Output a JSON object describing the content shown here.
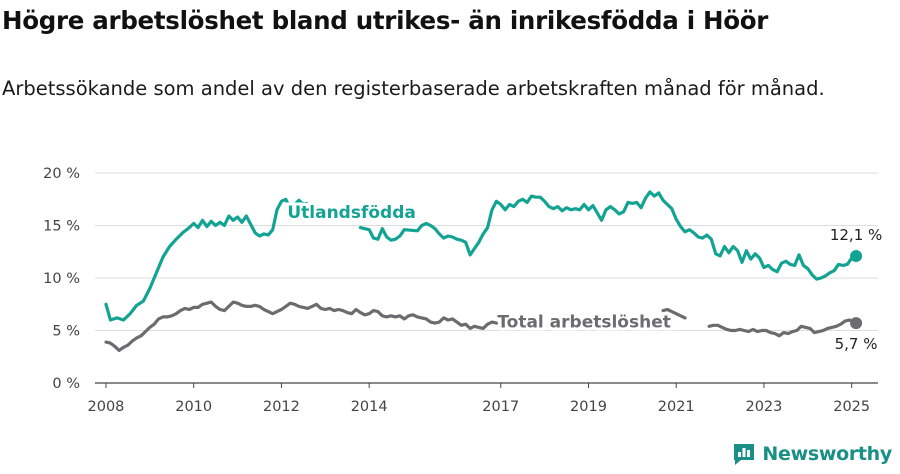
{
  "title": "Högre arbetslöshet bland utrikes- än inrikesfödda i Höör",
  "subtitle": "Arbetssökande som andel av den registerbaserade arbetskraften månad för månad.",
  "brand": {
    "name": "Newsworthy",
    "icon": "newsworthy-logo-icon",
    "color": "#1a8f86"
  },
  "chart_data": {
    "type": "line",
    "xlim": [
      2007.75,
      2025.6
    ],
    "ylim": [
      0,
      20
    ],
    "yticks": [
      0,
      5,
      10,
      15,
      20
    ],
    "ytick_labels": [
      "0 %",
      "5 %",
      "10 %",
      "15 %",
      "20 %"
    ],
    "xticks": [
      2008,
      2010,
      2012,
      2014,
      2017,
      2019,
      2021,
      2023,
      2025
    ],
    "xtick_labels": [
      "2008",
      "2010",
      "2012",
      "2014",
      "2017",
      "2019",
      "2021",
      "2023",
      "2025"
    ],
    "grid": true,
    "series": [
      {
        "name": "Utlandsfödda",
        "color": "#13a393",
        "end_label": "12,1 %",
        "points": [
          [
            2008.0,
            7.5
          ],
          [
            2008.1,
            6.0
          ],
          [
            2008.25,
            6.2
          ],
          [
            2008.4,
            6.0
          ],
          [
            2008.55,
            6.6
          ],
          [
            2008.7,
            7.4
          ],
          [
            2008.85,
            7.8
          ],
          [
            2009.0,
            9.0
          ],
          [
            2009.15,
            10.5
          ],
          [
            2009.3,
            12.0
          ],
          [
            2009.45,
            13.0
          ],
          [
            2009.6,
            13.7
          ],
          [
            2009.75,
            14.3
          ],
          [
            2009.9,
            14.8
          ],
          [
            2010.0,
            15.2
          ],
          [
            2010.1,
            14.8
          ],
          [
            2010.2,
            15.5
          ],
          [
            2010.3,
            14.9
          ],
          [
            2010.4,
            15.4
          ],
          [
            2010.5,
            15.0
          ],
          [
            2010.6,
            15.3
          ],
          [
            2010.7,
            15.0
          ],
          [
            2010.8,
            15.9
          ],
          [
            2010.9,
            15.5
          ],
          [
            2011.0,
            15.8
          ],
          [
            2011.1,
            15.3
          ],
          [
            2011.2,
            15.9
          ],
          [
            2011.3,
            15.1
          ],
          [
            2011.4,
            14.3
          ],
          [
            2011.5,
            14.0
          ],
          [
            2011.6,
            14.2
          ],
          [
            2011.7,
            14.1
          ],
          [
            2011.8,
            14.6
          ],
          [
            2011.9,
            16.5
          ],
          [
            2012.0,
            17.3
          ],
          [
            2012.1,
            17.5
          ],
          [
            2012.2,
            16.6
          ],
          [
            2012.3,
            17.0
          ],
          [
            2012.4,
            17.4
          ],
          [
            2012.5,
            17.0
          ],
          [
            2012.6,
            17.1
          ],
          [
            2012.7,
            16.7
          ],
          [
            2013.8,
            14.8
          ],
          [
            2013.9,
            14.7
          ],
          [
            2014.0,
            14.6
          ],
          [
            2014.1,
            13.8
          ],
          [
            2014.2,
            13.7
          ],
          [
            2014.3,
            14.7
          ],
          [
            2014.4,
            13.9
          ],
          [
            2014.5,
            13.6
          ],
          [
            2014.6,
            13.7
          ],
          [
            2014.7,
            14.0
          ],
          [
            2014.8,
            14.6
          ],
          [
            2015.1,
            14.5
          ],
          [
            2015.2,
            15.0
          ],
          [
            2015.3,
            15.2
          ],
          [
            2015.4,
            15.0
          ],
          [
            2015.5,
            14.7
          ],
          [
            2015.6,
            14.2
          ],
          [
            2015.7,
            13.8
          ],
          [
            2015.8,
            14.0
          ],
          [
            2015.9,
            13.9
          ],
          [
            2016.0,
            13.7
          ],
          [
            2016.1,
            13.6
          ],
          [
            2016.2,
            13.4
          ],
          [
            2016.3,
            12.2
          ],
          [
            2016.4,
            12.8
          ],
          [
            2016.5,
            13.4
          ],
          [
            2016.6,
            14.2
          ],
          [
            2016.7,
            14.8
          ],
          [
            2016.8,
            16.5
          ],
          [
            2016.9,
            17.3
          ],
          [
            2017.0,
            17.0
          ],
          [
            2017.1,
            16.5
          ],
          [
            2017.2,
            17.0
          ],
          [
            2017.3,
            16.8
          ],
          [
            2017.4,
            17.3
          ],
          [
            2017.5,
            17.5
          ],
          [
            2017.6,
            17.2
          ],
          [
            2017.7,
            17.8
          ],
          [
            2017.8,
            17.7
          ],
          [
            2017.9,
            17.7
          ],
          [
            2018.0,
            17.3
          ],
          [
            2018.1,
            16.8
          ],
          [
            2018.2,
            16.6
          ],
          [
            2018.3,
            16.8
          ],
          [
            2018.4,
            16.4
          ],
          [
            2018.5,
            16.7
          ],
          [
            2018.6,
            16.5
          ],
          [
            2018.7,
            16.6
          ],
          [
            2018.8,
            16.5
          ],
          [
            2018.9,
            17.0
          ],
          [
            2019.0,
            16.5
          ],
          [
            2019.1,
            16.9
          ],
          [
            2019.2,
            16.2
          ],
          [
            2019.3,
            15.5
          ],
          [
            2019.4,
            16.5
          ],
          [
            2019.5,
            16.8
          ],
          [
            2019.6,
            16.5
          ],
          [
            2019.7,
            16.1
          ],
          [
            2019.8,
            16.3
          ],
          [
            2019.9,
            17.2
          ],
          [
            2020.0,
            17.1
          ],
          [
            2020.1,
            17.2
          ],
          [
            2020.2,
            16.7
          ],
          [
            2020.3,
            17.6
          ],
          [
            2020.4,
            18.2
          ],
          [
            2020.5,
            17.8
          ],
          [
            2020.6,
            18.1
          ],
          [
            2020.7,
            17.4
          ],
          [
            2020.8,
            17.0
          ],
          [
            2020.9,
            16.6
          ],
          [
            2021.0,
            15.6
          ],
          [
            2021.1,
            14.9
          ],
          [
            2021.2,
            14.4
          ],
          [
            2021.3,
            14.6
          ],
          [
            2021.4,
            14.3
          ],
          [
            2021.5,
            13.9
          ],
          [
            2021.6,
            13.8
          ],
          [
            2021.7,
            14.1
          ],
          [
            2021.8,
            13.7
          ],
          [
            2021.9,
            12.3
          ],
          [
            2022.0,
            12.1
          ],
          [
            2022.1,
            13.0
          ],
          [
            2022.2,
            12.4
          ],
          [
            2022.3,
            13.0
          ],
          [
            2022.4,
            12.6
          ],
          [
            2022.5,
            11.5
          ],
          [
            2022.6,
            12.6
          ],
          [
            2022.7,
            11.8
          ],
          [
            2022.8,
            12.3
          ],
          [
            2022.9,
            11.9
          ],
          [
            2023.0,
            11.0
          ],
          [
            2023.1,
            11.2
          ],
          [
            2023.2,
            10.8
          ],
          [
            2023.3,
            10.6
          ],
          [
            2023.4,
            11.4
          ],
          [
            2023.5,
            11.6
          ],
          [
            2023.6,
            11.3
          ],
          [
            2023.7,
            11.2
          ],
          [
            2023.8,
            12.2
          ],
          [
            2023.9,
            11.2
          ],
          [
            2024.0,
            10.9
          ],
          [
            2024.1,
            10.3
          ],
          [
            2024.2,
            9.9
          ],
          [
            2024.3,
            10.0
          ],
          [
            2024.4,
            10.2
          ],
          [
            2024.5,
            10.5
          ],
          [
            2024.6,
            10.7
          ],
          [
            2024.7,
            11.3
          ],
          [
            2024.8,
            11.2
          ],
          [
            2024.9,
            11.3
          ],
          [
            2025.0,
            11.9
          ],
          [
            2025.1,
            12.1
          ]
        ]
      },
      {
        "name": "Total arbetslöshet",
        "color": "#6b6b70",
        "end_label": "5,7 %",
        "points": [
          [
            2008.0,
            3.9
          ],
          [
            2008.1,
            3.8
          ],
          [
            2008.2,
            3.5
          ],
          [
            2008.3,
            3.1
          ],
          [
            2008.4,
            3.4
          ],
          [
            2008.5,
            3.6
          ],
          [
            2008.6,
            4.0
          ],
          [
            2008.7,
            4.3
          ],
          [
            2008.8,
            4.5
          ],
          [
            2008.9,
            4.9
          ],
          [
            2009.0,
            5.3
          ],
          [
            2009.1,
            5.6
          ],
          [
            2009.2,
            6.1
          ],
          [
            2009.3,
            6.3
          ],
          [
            2009.4,
            6.3
          ],
          [
            2009.5,
            6.4
          ],
          [
            2009.6,
            6.6
          ],
          [
            2009.7,
            6.9
          ],
          [
            2009.8,
            7.1
          ],
          [
            2009.9,
            7.0
          ],
          [
            2010.0,
            7.2
          ],
          [
            2010.1,
            7.2
          ],
          [
            2010.2,
            7.5
          ],
          [
            2010.3,
            7.6
          ],
          [
            2010.4,
            7.7
          ],
          [
            2010.5,
            7.3
          ],
          [
            2010.6,
            7.0
          ],
          [
            2010.7,
            6.9
          ],
          [
            2010.8,
            7.3
          ],
          [
            2010.9,
            7.7
          ],
          [
            2011.0,
            7.6
          ],
          [
            2011.1,
            7.4
          ],
          [
            2011.2,
            7.3
          ],
          [
            2011.3,
            7.3
          ],
          [
            2011.4,
            7.4
          ],
          [
            2011.5,
            7.3
          ],
          [
            2011.6,
            7.0
          ],
          [
            2011.7,
            6.8
          ],
          [
            2011.8,
            6.6
          ],
          [
            2011.9,
            6.8
          ],
          [
            2012.0,
            7.0
          ],
          [
            2012.1,
            7.3
          ],
          [
            2012.2,
            7.6
          ],
          [
            2012.3,
            7.5
          ],
          [
            2012.4,
            7.3
          ],
          [
            2012.5,
            7.2
          ],
          [
            2012.6,
            7.1
          ],
          [
            2012.7,
            7.3
          ],
          [
            2012.8,
            7.5
          ],
          [
            2012.9,
            7.1
          ],
          [
            2013.0,
            7.0
          ],
          [
            2013.1,
            7.1
          ],
          [
            2013.2,
            6.9
          ],
          [
            2013.3,
            7.0
          ],
          [
            2013.4,
            6.9
          ],
          [
            2013.5,
            6.7
          ],
          [
            2013.6,
            6.6
          ],
          [
            2013.7,
            7.0
          ],
          [
            2013.8,
            6.7
          ],
          [
            2013.9,
            6.5
          ],
          [
            2014.0,
            6.6
          ],
          [
            2014.1,
            6.9
          ],
          [
            2014.2,
            6.8
          ],
          [
            2014.3,
            6.4
          ],
          [
            2014.4,
            6.3
          ],
          [
            2014.5,
            6.4
          ],
          [
            2014.6,
            6.3
          ],
          [
            2014.7,
            6.4
          ],
          [
            2014.8,
            6.1
          ],
          [
            2014.9,
            6.4
          ],
          [
            2015.0,
            6.5
          ],
          [
            2015.1,
            6.3
          ],
          [
            2015.2,
            6.2
          ],
          [
            2015.3,
            6.1
          ],
          [
            2015.4,
            5.8
          ],
          [
            2015.5,
            5.7
          ],
          [
            2015.6,
            5.8
          ],
          [
            2015.7,
            6.2
          ],
          [
            2015.8,
            6.0
          ],
          [
            2015.9,
            6.1
          ],
          [
            2016.0,
            5.8
          ],
          [
            2016.1,
            5.5
          ],
          [
            2016.2,
            5.6
          ],
          [
            2016.3,
            5.2
          ],
          [
            2016.4,
            5.4
          ],
          [
            2016.5,
            5.3
          ],
          [
            2016.6,
            5.2
          ],
          [
            2016.7,
            5.6
          ],
          [
            2016.8,
            5.8
          ],
          [
            2016.9,
            5.7
          ],
          [
            2020.7,
            6.9
          ],
          [
            2020.8,
            7.0
          ],
          [
            2020.9,
            6.8
          ],
          [
            2021.0,
            6.6
          ],
          [
            2021.1,
            6.4
          ],
          [
            2021.2,
            6.2
          ],
          [
            2021.75,
            5.4
          ],
          [
            2021.85,
            5.5
          ],
          [
            2021.95,
            5.5
          ],
          [
            2022.05,
            5.3
          ],
          [
            2022.15,
            5.1
          ],
          [
            2022.25,
            5.0
          ],
          [
            2022.35,
            5.0
          ],
          [
            2022.45,
            5.1
          ],
          [
            2022.55,
            5.0
          ],
          [
            2022.65,
            4.9
          ],
          [
            2022.75,
            5.1
          ],
          [
            2022.85,
            4.9
          ],
          [
            2022.95,
            5.0
          ],
          [
            2023.05,
            5.0
          ],
          [
            2023.15,
            4.8
          ],
          [
            2023.25,
            4.7
          ],
          [
            2023.35,
            4.5
          ],
          [
            2023.45,
            4.8
          ],
          [
            2023.55,
            4.7
          ],
          [
            2023.65,
            4.9
          ],
          [
            2023.75,
            5.0
          ],
          [
            2023.85,
            5.4
          ],
          [
            2023.95,
            5.3
          ],
          [
            2024.05,
            5.2
          ],
          [
            2024.15,
            4.8
          ],
          [
            2024.25,
            4.9
          ],
          [
            2024.35,
            5.0
          ],
          [
            2024.45,
            5.2
          ],
          [
            2024.55,
            5.3
          ],
          [
            2024.65,
            5.4
          ],
          [
            2024.75,
            5.6
          ],
          [
            2024.85,
            5.9
          ],
          [
            2024.95,
            6.0
          ],
          [
            2025.05,
            5.8
          ],
          [
            2025.1,
            5.7
          ]
        ]
      }
    ]
  }
}
